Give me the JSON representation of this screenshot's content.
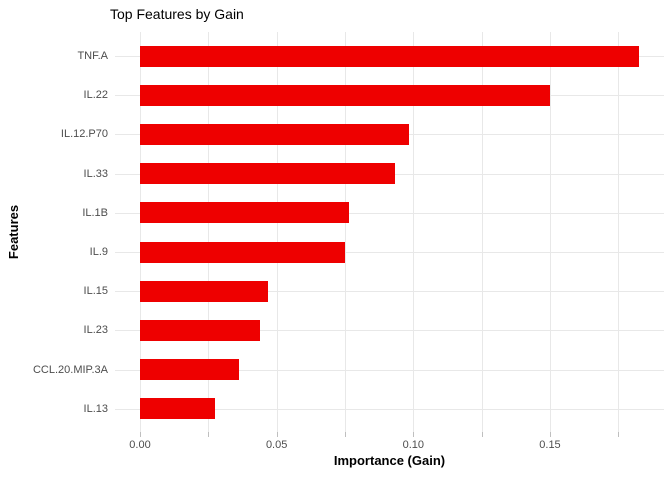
{
  "chart_data": {
    "type": "bar",
    "orientation": "horizontal",
    "title": "Top Features by Gain",
    "xlabel": "Importance (Gain)",
    "ylabel": "Features",
    "categories": [
      "TNF.A",
      "IL.22",
      "IL.12.P70",
      "IL.33",
      "IL.1B",
      "IL.9",
      "IL.15",
      "IL.23",
      "CCL.20.MIP.3A",
      "IL.13"
    ],
    "values": [
      0.1825,
      0.15,
      0.0984,
      0.0932,
      0.0765,
      0.075,
      0.0467,
      0.0439,
      0.0363,
      0.0273
    ],
    "xlim": [
      0,
      0.19
    ],
    "x_major_ticks": [
      {
        "value": 0.0,
        "label": "0.00"
      },
      {
        "value": 0.05,
        "label": "0.05"
      },
      {
        "value": 0.1,
        "label": "0.10"
      },
      {
        "value": 0.15,
        "label": "0.15"
      }
    ],
    "x_minor_ticks": [
      0.025,
      0.075,
      0.125,
      0.175
    ],
    "bar_color": "#ee0000",
    "grid": true,
    "legend": "none",
    "colors": {
      "grid": "#e8e8e8",
      "tick_mark": "#bfbfbf",
      "axis_text": "#4d4d4d",
      "title_text": "#000000",
      "background": "#ffffff"
    }
  }
}
